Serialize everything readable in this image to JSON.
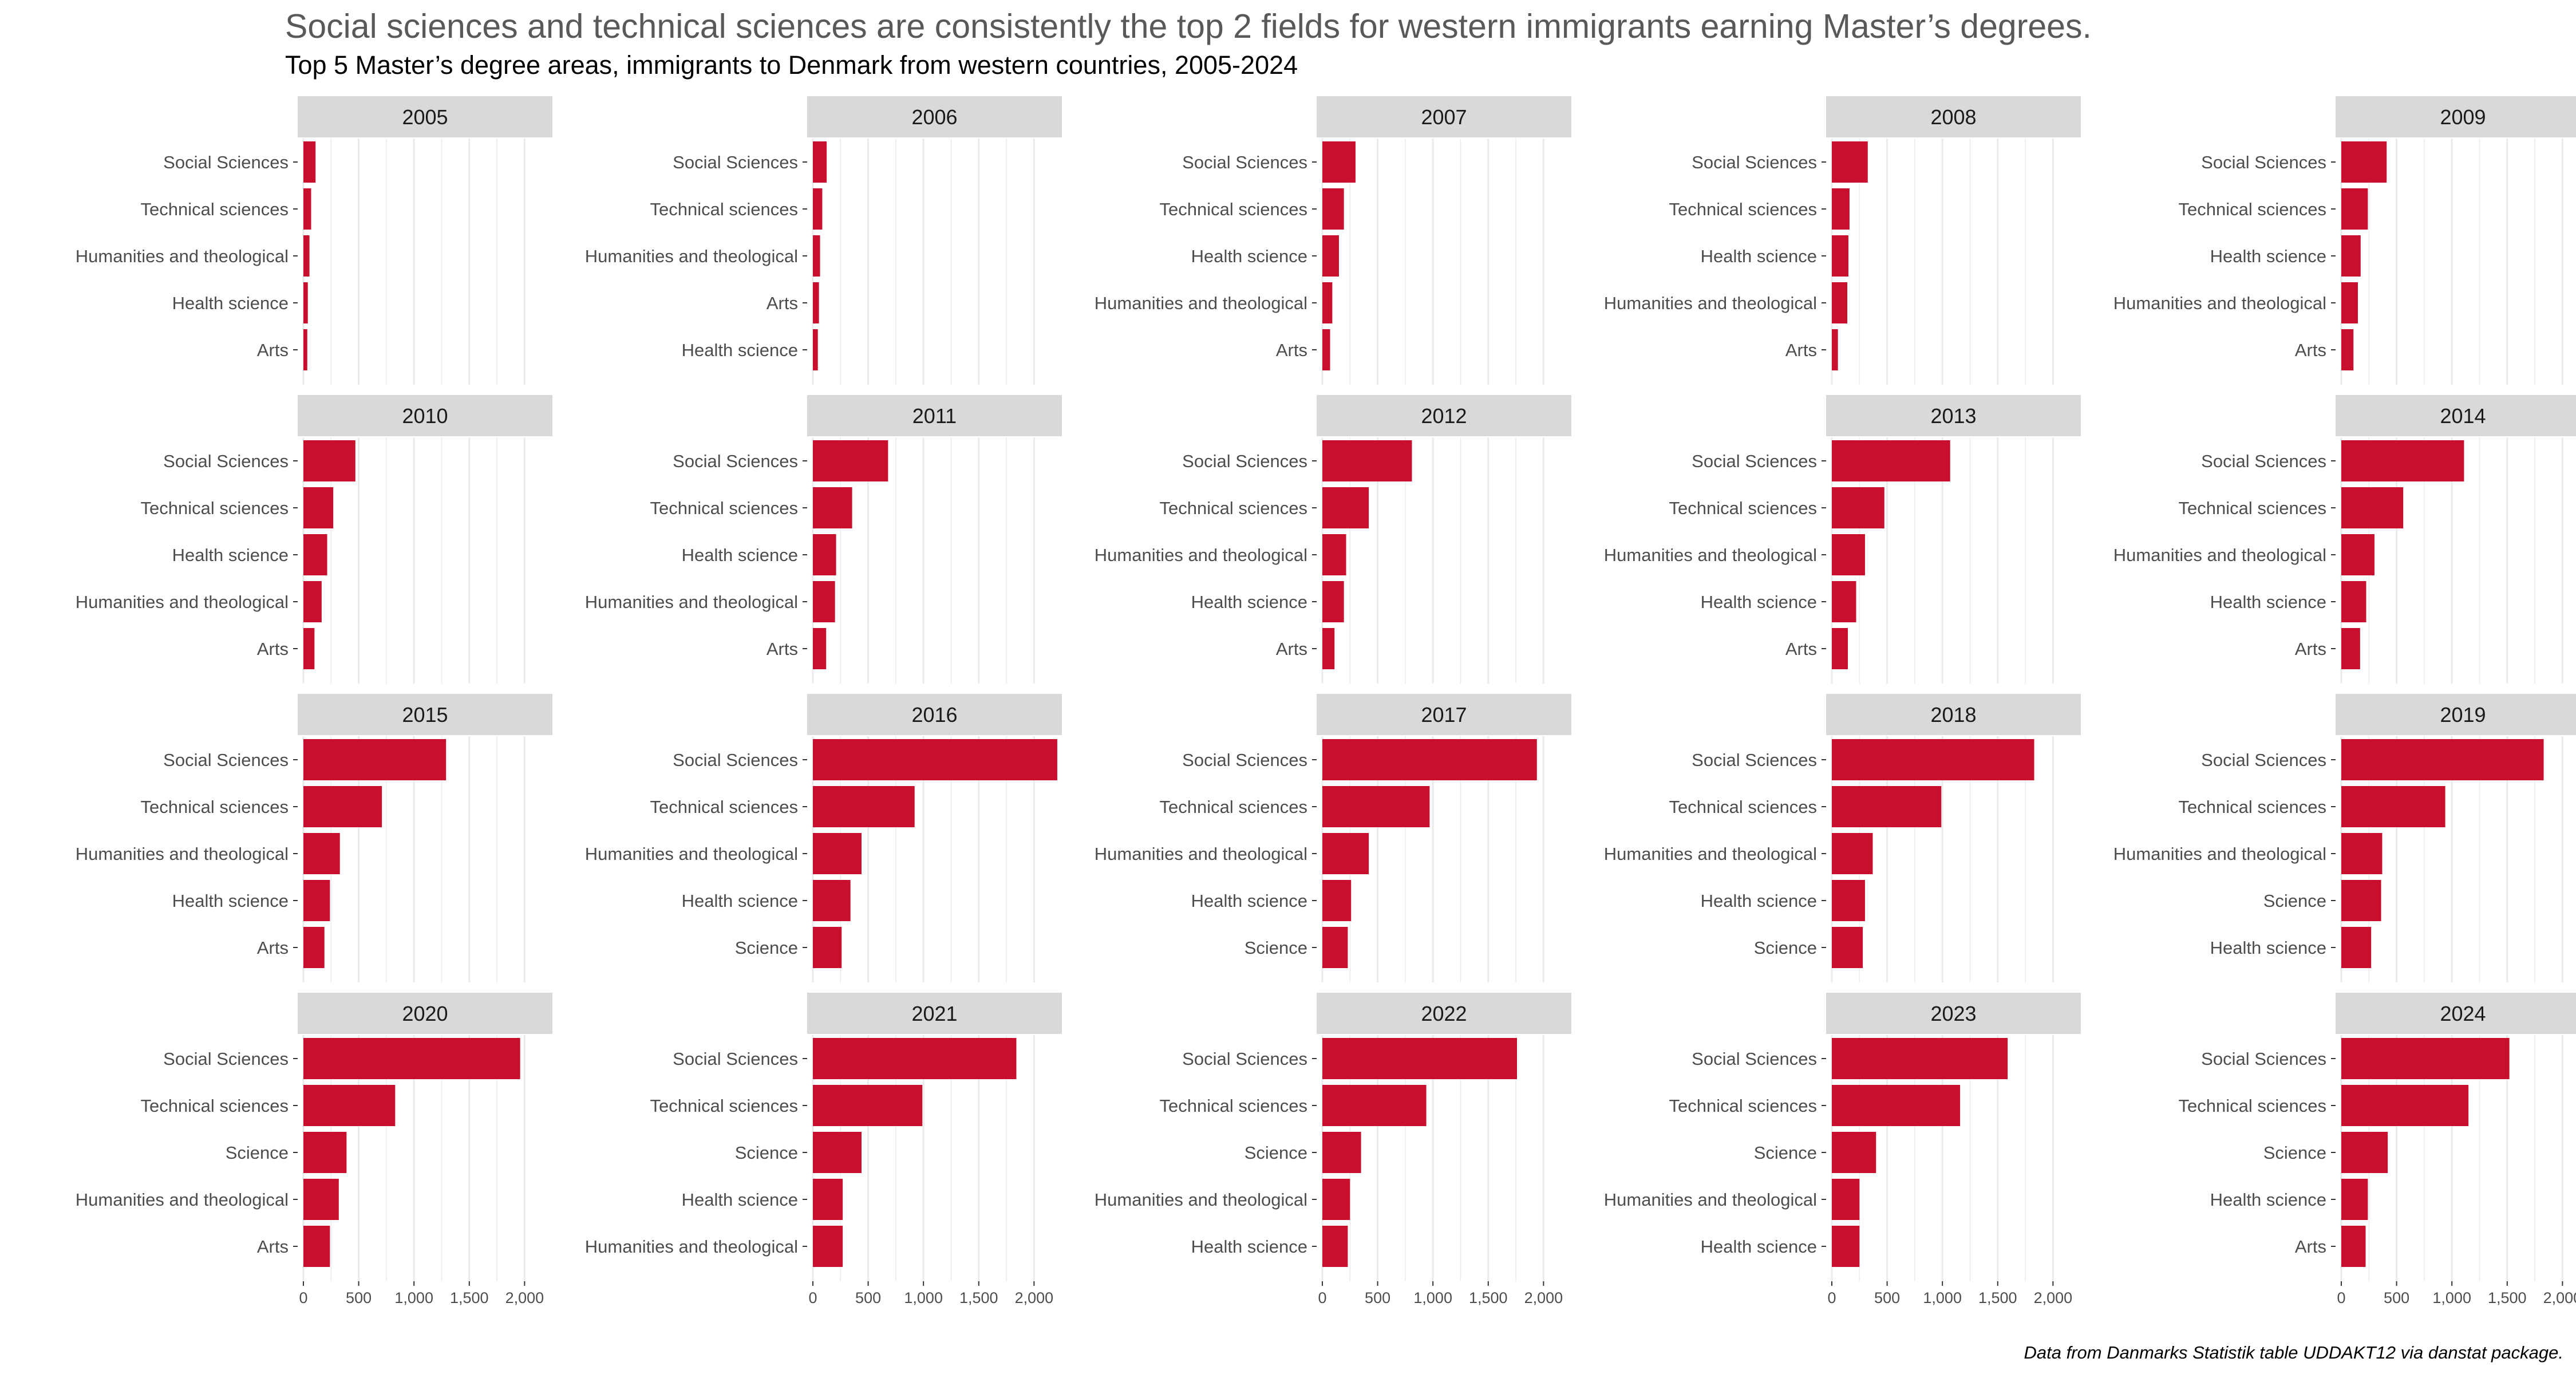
{
  "chart": {
    "title": "Social sciences and technical sciences are consistently the top 2 fields for western immigrants earning Master’s degrees.",
    "subtitle": "Top 5 Master’s degree areas, immigrants to Denmark from western countries, 2005-2024",
    "caption": "Data from Danmarks Statistik table UDDAKT12 via danstat package.",
    "bar_color": "#C8102E",
    "strip_color": "#D9D9D9",
    "grid_color": "#EBEBEB"
  },
  "chart_data": {
    "type": "bar",
    "orientation": "horizontal",
    "facet_layout": "5 columns x 4 rows",
    "xlim": [
      0,
      2200
    ],
    "x_ticks": [
      0,
      500,
      1000,
      1500,
      2000
    ],
    "x_tick_labels": [
      "0",
      "500",
      "1,000",
      "1,500",
      "2,000"
    ],
    "grid": true,
    "legend": "none",
    "panels": [
      {
        "year": "2005",
        "categories": [
          "Social Sciences",
          "Technical sciences",
          "Humanities and theological",
          "Health science",
          "Arts"
        ],
        "values": [
          110,
          70,
          55,
          40,
          35
        ]
      },
      {
        "year": "2006",
        "categories": [
          "Social Sciences",
          "Technical sciences",
          "Humanities and theological",
          "Arts",
          "Health science"
        ],
        "values": [
          125,
          85,
          65,
          55,
          45
        ]
      },
      {
        "year": "2007",
        "categories": [
          "Social Sciences",
          "Technical sciences",
          "Health science",
          "Humanities and theological",
          "Arts"
        ],
        "values": [
          300,
          195,
          150,
          90,
          70
        ]
      },
      {
        "year": "2008",
        "categories": [
          "Social Sciences",
          "Technical sciences",
          "Health science",
          "Humanities and theological",
          "Arts"
        ],
        "values": [
          325,
          160,
          150,
          140,
          55
        ]
      },
      {
        "year": "2009",
        "categories": [
          "Social Sciences",
          "Technical sciences",
          "Health science",
          "Humanities and theological",
          "Arts"
        ],
        "values": [
          410,
          240,
          175,
          150,
          110
        ]
      },
      {
        "year": "2010",
        "categories": [
          "Social Sciences",
          "Technical sciences",
          "Health science",
          "Humanities and theological",
          "Arts"
        ],
        "values": [
          470,
          270,
          215,
          165,
          100
        ]
      },
      {
        "year": "2011",
        "categories": [
          "Social Sciences",
          "Technical sciences",
          "Health science",
          "Humanities and theological",
          "Arts"
        ],
        "values": [
          680,
          355,
          210,
          200,
          120
        ]
      },
      {
        "year": "2012",
        "categories": [
          "Social Sciences",
          "Technical sciences",
          "Humanities and theological",
          "Health science",
          "Arts"
        ],
        "values": [
          810,
          420,
          215,
          195,
          110
        ]
      },
      {
        "year": "2013",
        "categories": [
          "Social Sciences",
          "Technical sciences",
          "Humanities and theological",
          "Health science",
          "Arts"
        ],
        "values": [
          1070,
          475,
          300,
          220,
          145
        ]
      },
      {
        "year": "2014",
        "categories": [
          "Social Sciences",
          "Technical sciences",
          "Humanities and theological",
          "Health science",
          "Arts"
        ],
        "values": [
          1110,
          560,
          300,
          225,
          170
        ]
      },
      {
        "year": "2015",
        "categories": [
          "Social Sciences",
          "Technical sciences",
          "Humanities and theological",
          "Health science",
          "Arts"
        ],
        "values": [
          1290,
          710,
          330,
          240,
          190
        ]
      },
      {
        "year": "2016",
        "categories": [
          "Social Sciences",
          "Technical sciences",
          "Humanities and theological",
          "Health science",
          "Science"
        ],
        "values": [
          2210,
          920,
          440,
          340,
          260
        ]
      },
      {
        "year": "2017",
        "categories": [
          "Social Sciences",
          "Technical sciences",
          "Humanities and theological",
          "Health science",
          "Science"
        ],
        "values": [
          1940,
          970,
          420,
          260,
          230
        ]
      },
      {
        "year": "2018",
        "categories": [
          "Social Sciences",
          "Technical sciences",
          "Humanities and theological",
          "Health science",
          "Science"
        ],
        "values": [
          1830,
          990,
          370,
          300,
          280
        ]
      },
      {
        "year": "2019",
        "categories": [
          "Social Sciences",
          "Technical sciences",
          "Humanities and theological",
          "Science",
          "Health science"
        ],
        "values": [
          1830,
          940,
          370,
          360,
          270
        ]
      },
      {
        "year": "2020",
        "categories": [
          "Social Sciences",
          "Technical sciences",
          "Science",
          "Humanities and theological",
          "Arts"
        ],
        "values": [
          1960,
          830,
          390,
          320,
          240
        ]
      },
      {
        "year": "2021",
        "categories": [
          "Social Sciences",
          "Technical sciences",
          "Science",
          "Health science",
          "Humanities and theological"
        ],
        "values": [
          1840,
          990,
          440,
          270,
          270
        ]
      },
      {
        "year": "2022",
        "categories": [
          "Social Sciences",
          "Technical sciences",
          "Science",
          "Humanities and theological",
          "Health science"
        ],
        "values": [
          1760,
          940,
          350,
          250,
          230
        ]
      },
      {
        "year": "2023",
        "categories": [
          "Social Sciences",
          "Technical sciences",
          "Science",
          "Humanities and theological",
          "Health science"
        ],
        "values": [
          1590,
          1160,
          400,
          250,
          250
        ]
      },
      {
        "year": "2024",
        "categories": [
          "Social Sciences",
          "Technical sciences",
          "Science",
          "Health science",
          "Arts"
        ],
        "values": [
          1520,
          1150,
          420,
          240,
          220
        ]
      }
    ]
  }
}
